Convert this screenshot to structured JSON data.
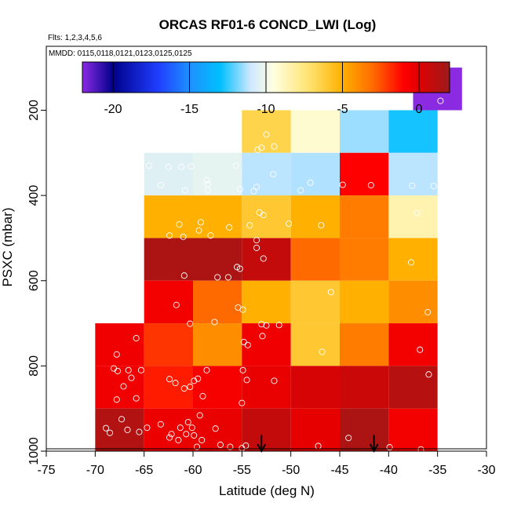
{
  "chart_data": {
    "type": "heatmap",
    "title": "ORCAS RF01-6 CONCD_LWI (Log)",
    "flights_label": "Flts: 1,2,3,4,5,6",
    "dates_label": "MMDD: 0115,0118,0121,0123,0125,0125",
    "xlabel": "Latitude (deg N)",
    "ylabel": "PSXC (mbar)",
    "xlim": [
      -75,
      -30
    ],
    "ylim": [
      1000,
      50
    ],
    "x_ticks": [
      -75,
      -70,
      -65,
      -60,
      -55,
      -50,
      -45,
      -40,
      -35,
      -30
    ],
    "x_tick_labels": [
      "-75",
      "-70",
      "-65",
      "-60",
      "-55",
      "-50",
      "-45",
      "-40",
      "-35",
      "-30"
    ],
    "y_ticks": [
      200,
      400,
      600,
      800,
      1000
    ],
    "y_tick_labels": [
      "200",
      "400",
      "600",
      "800",
      "1000"
    ],
    "colorbar": {
      "range": [
        -22,
        2
      ],
      "ticks": [
        -20,
        -15,
        -10,
        -5,
        0
      ],
      "tick_labels": [
        "-20",
        "-15",
        "-10",
        "-5",
        "0"
      ],
      "stops": [
        {
          "v": -22,
          "color": "#8a2be2"
        },
        {
          "v": -20,
          "color": "#00008b"
        },
        {
          "v": -17,
          "color": "#1f3fff"
        },
        {
          "v": -15,
          "color": "#1e90ff"
        },
        {
          "v": -13,
          "color": "#00bfff"
        },
        {
          "v": -11,
          "color": "#cfe8ff"
        },
        {
          "v": -9.5,
          "color": "#ffffe0"
        },
        {
          "v": -7,
          "color": "#ffe066"
        },
        {
          "v": -5,
          "color": "#ffb000"
        },
        {
          "v": -3,
          "color": "#ff6a00"
        },
        {
          "v": -1,
          "color": "#ff0000"
        },
        {
          "v": 0,
          "color": "#e00000"
        },
        {
          "v": 2,
          "color": "#9b1b1b"
        }
      ]
    },
    "cells": [
      {
        "lon": -35,
        "p": 150,
        "v": -22
      },
      {
        "lon": -52.5,
        "p": 250,
        "v": -6.5
      },
      {
        "lon": -47.5,
        "p": 250,
        "v": -9.2
      },
      {
        "lon": -42.5,
        "p": 250,
        "v": -11.5
      },
      {
        "lon": -37.5,
        "p": 250,
        "v": -12.8
      },
      {
        "lon": -62.5,
        "p": 350,
        "v": -10.5
      },
      {
        "lon": -57.5,
        "p": 350,
        "v": -10.3
      },
      {
        "lon": -52.5,
        "p": 350,
        "v": -11.2
      },
      {
        "lon": -47.5,
        "p": 350,
        "v": -11.3
      },
      {
        "lon": -42.5,
        "p": 350,
        "v": -1
      },
      {
        "lon": -37.5,
        "p": 350,
        "v": -11.2
      },
      {
        "lon": -62.5,
        "p": 450,
        "v": -5
      },
      {
        "lon": -57.5,
        "p": 450,
        "v": -5
      },
      {
        "lon": -52.5,
        "p": 450,
        "v": -6
      },
      {
        "lon": -47.5,
        "p": 450,
        "v": -5
      },
      {
        "lon": -42.5,
        "p": 450,
        "v": -3.5
      },
      {
        "lon": -37.5,
        "p": 450,
        "v": -8.5
      },
      {
        "lon": -62.5,
        "p": 550,
        "v": 1.5
      },
      {
        "lon": -57.5,
        "p": 550,
        "v": 1.5
      },
      {
        "lon": -52.5,
        "p": 550,
        "v": 0.8
      },
      {
        "lon": -47.5,
        "p": 550,
        "v": -3
      },
      {
        "lon": -42.5,
        "p": 550,
        "v": -3.5
      },
      {
        "lon": -37.5,
        "p": 550,
        "v": -5
      },
      {
        "lon": -62.5,
        "p": 650,
        "v": -0.6
      },
      {
        "lon": -57.5,
        "p": 650,
        "v": -3
      },
      {
        "lon": -52.5,
        "p": 650,
        "v": -5
      },
      {
        "lon": -47.5,
        "p": 650,
        "v": -6
      },
      {
        "lon": -42.5,
        "p": 650,
        "v": -5
      },
      {
        "lon": -37.5,
        "p": 650,
        "v": -4
      },
      {
        "lon": -67.5,
        "p": 750,
        "v": -0.5
      },
      {
        "lon": -62.5,
        "p": 750,
        "v": -2
      },
      {
        "lon": -57.5,
        "p": 750,
        "v": -4
      },
      {
        "lon": -52.5,
        "p": 750,
        "v": -0.5
      },
      {
        "lon": -47.5,
        "p": 750,
        "v": -6
      },
      {
        "lon": -42.5,
        "p": 750,
        "v": -3.5
      },
      {
        "lon": -37.5,
        "p": 750,
        "v": -0.6
      },
      {
        "lon": -67.5,
        "p": 850,
        "v": -0.5
      },
      {
        "lon": -62.5,
        "p": 850,
        "v": -1.5
      },
      {
        "lon": -57.5,
        "p": 850,
        "v": -0.7
      },
      {
        "lon": -52.5,
        "p": 850,
        "v": -0.3
      },
      {
        "lon": -47.5,
        "p": 850,
        "v": 0.3
      },
      {
        "lon": -42.5,
        "p": 850,
        "v": 0.6
      },
      {
        "lon": -37.5,
        "p": 850,
        "v": 1.2
      },
      {
        "lon": -67.5,
        "p": 950,
        "v": 1.3
      },
      {
        "lon": -62.5,
        "p": 950,
        "v": -0.4
      },
      {
        "lon": -57.5,
        "p": 950,
        "v": -0.3
      },
      {
        "lon": -52.5,
        "p": 950,
        "v": 0.8
      },
      {
        "lon": -47.5,
        "p": 950,
        "v": -0.2
      },
      {
        "lon": -42.5,
        "p": 950,
        "v": 1.5
      },
      {
        "lon": -37.5,
        "p": 950,
        "v": -0.6
      }
    ],
    "cell_width_deg": 5,
    "cell_height_mbar": 100,
    "arrows": [
      {
        "lat": -53,
        "p_top": 962,
        "p_bottom": 1000
      },
      {
        "lat": -41.5,
        "p_top": 962,
        "p_bottom": 1000
      }
    ],
    "points": [
      [
        -34.7,
        178
      ],
      [
        -52.5,
        257
      ],
      [
        -53,
        288
      ],
      [
        -53.4,
        293
      ],
      [
        -51.7,
        285
      ],
      [
        -64.5,
        330
      ],
      [
        -62.5,
        333
      ],
      [
        -61.2,
        333
      ],
      [
        -60.2,
        332
      ],
      [
        -58.6,
        364
      ],
      [
        -58.5,
        374
      ],
      [
        -58.5,
        388
      ],
      [
        -60.8,
        388
      ],
      [
        -63.3,
        376
      ],
      [
        -55.6,
        330
      ],
      [
        -55.2,
        385
      ],
      [
        -53.5,
        380
      ],
      [
        -53.8,
        390
      ],
      [
        -51.8,
        350
      ],
      [
        -48,
        370
      ],
      [
        -49,
        388
      ],
      [
        -44.7,
        375
      ],
      [
        -41.8,
        376
      ],
      [
        -37.6,
        377
      ],
      [
        -35.4,
        378
      ],
      [
        -53.2,
        440
      ],
      [
        -52.8,
        446
      ],
      [
        -50.2,
        466
      ],
      [
        -54.2,
        470
      ],
      [
        -56.3,
        475
      ],
      [
        -58.2,
        494
      ],
      [
        -59.4,
        482
      ],
      [
        -59.2,
        463
      ],
      [
        -61.4,
        468
      ],
      [
        -62.4,
        494
      ],
      [
        -61,
        497
      ],
      [
        -46.9,
        470
      ],
      [
        -37.1,
        441
      ],
      [
        -53.5,
        523
      ],
      [
        -52.8,
        548
      ],
      [
        -53.5,
        505
      ],
      [
        -55.5,
        568
      ],
      [
        -55.2,
        572
      ],
      [
        -57.5,
        592
      ],
      [
        -56.4,
        592
      ],
      [
        -60.9,
        588
      ],
      [
        -37.7,
        557
      ],
      [
        -61.7,
        657
      ],
      [
        -60.3,
        701
      ],
      [
        -57.8,
        697
      ],
      [
        -55.4,
        663
      ],
      [
        -54.9,
        668
      ],
      [
        -53,
        702
      ],
      [
        -52.5,
        705
      ],
      [
        -51.2,
        704
      ],
      [
        -45.9,
        627
      ],
      [
        -36,
        674
      ],
      [
        -54.8,
        744
      ],
      [
        -54.4,
        751
      ],
      [
        -52.9,
        730
      ],
      [
        -46.8,
        767
      ],
      [
        -36.8,
        762
      ],
      [
        -67.8,
        773
      ],
      [
        -68.1,
        806
      ],
      [
        -67.7,
        812
      ],
      [
        -66.6,
        810
      ],
      [
        -65.3,
        810
      ],
      [
        -65.8,
        735
      ],
      [
        -66.3,
        828
      ],
      [
        -67.1,
        848
      ],
      [
        -67.8,
        879
      ],
      [
        -65.8,
        876
      ],
      [
        -62.4,
        831
      ],
      [
        -61.8,
        840
      ],
      [
        -60.9,
        853
      ],
      [
        -60.3,
        849
      ],
      [
        -59.9,
        835
      ],
      [
        -59.5,
        830
      ],
      [
        -58.6,
        810
      ],
      [
        -59,
        871
      ],
      [
        -54.9,
        810
      ],
      [
        -54.5,
        833
      ],
      [
        -55,
        887
      ],
      [
        -51.7,
        835
      ],
      [
        -35.9,
        820
      ],
      [
        -68.5,
        957
      ],
      [
        -66.7,
        950
      ],
      [
        -68.9,
        946
      ],
      [
        -67.3,
        925
      ],
      [
        -65.5,
        955
      ],
      [
        -64.7,
        945
      ],
      [
        -62.2,
        960
      ],
      [
        -61.3,
        945
      ],
      [
        -62.4,
        968
      ],
      [
        -63.3,
        937
      ],
      [
        -60.5,
        932
      ],
      [
        -60.1,
        945
      ],
      [
        -59.9,
        963
      ],
      [
        -60.7,
        960
      ],
      [
        -59.3,
        916
      ],
      [
        -59.1,
        974
      ],
      [
        -59.6,
        990
      ],
      [
        -57.7,
        947
      ],
      [
        -57.2,
        985
      ],
      [
        -56.2,
        990
      ],
      [
        -55,
        993
      ],
      [
        -54.6,
        987
      ],
      [
        -44.1,
        969
      ],
      [
        -47.2,
        988
      ],
      [
        -39.9,
        991
      ],
      [
        -36.7,
        996
      ],
      [
        -61.5,
        974
      ]
    ]
  }
}
